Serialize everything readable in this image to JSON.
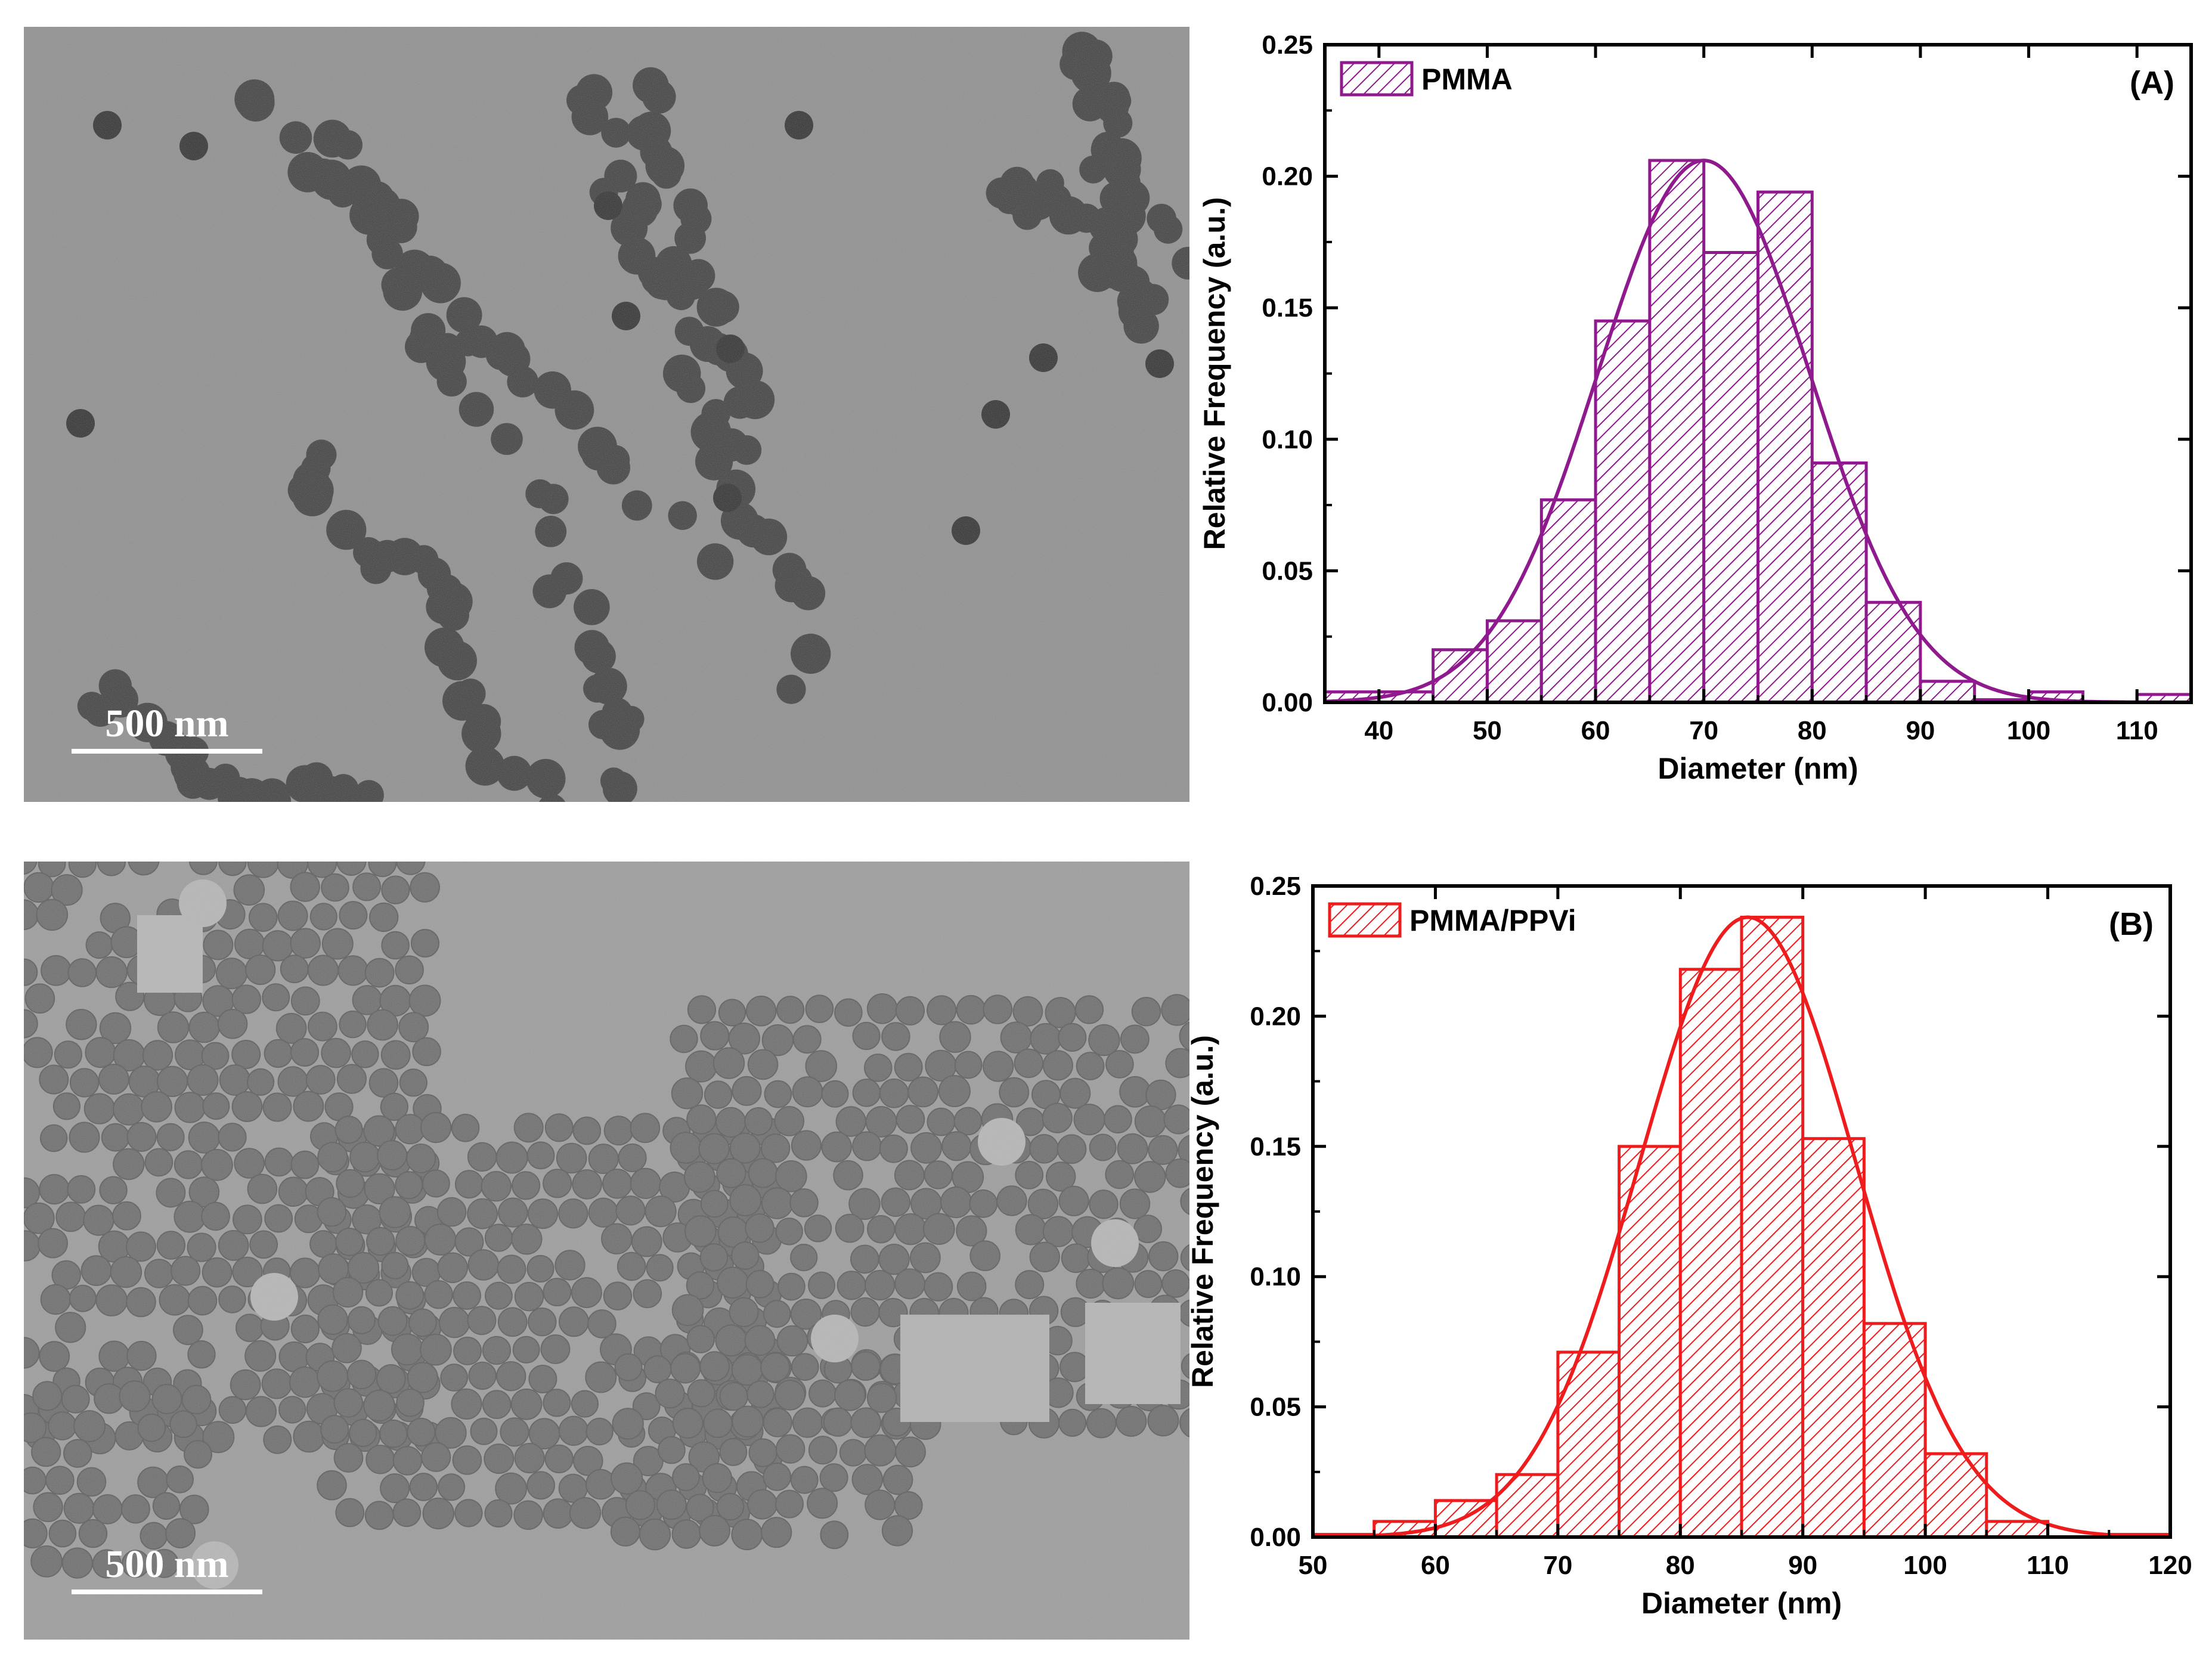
{
  "tem_images": [
    {
      "scale_label": "500 nm",
      "accent": "#3d3d3d"
    },
    {
      "scale_label": "500 nm",
      "accent": "#6b6b6b"
    }
  ],
  "chart_data": [
    {
      "type": "bar",
      "panel_label": "(A)",
      "legend": "PMMA",
      "color": "#8e1a8e",
      "xlabel": "Diameter (nm)",
      "ylabel": "Relative Frequency (a.u.)",
      "xlim": [
        35,
        115
      ],
      "ylim": [
        0,
        0.25
      ],
      "xticks": [
        40,
        50,
        60,
        70,
        80,
        90,
        100,
        110
      ],
      "yticks": [
        0.0,
        0.05,
        0.1,
        0.15,
        0.2,
        0.25
      ],
      "bin_width": 5,
      "bins": [
        {
          "x": 35,
          "value": 0.004
        },
        {
          "x": 40,
          "value": 0.004
        },
        {
          "x": 45,
          "value": 0.02
        },
        {
          "x": 50,
          "value": 0.031
        },
        {
          "x": 55,
          "value": 0.077
        },
        {
          "x": 60,
          "value": 0.145
        },
        {
          "x": 65,
          "value": 0.206
        },
        {
          "x": 70,
          "value": 0.171
        },
        {
          "x": 75,
          "value": 0.194
        },
        {
          "x": 80,
          "value": 0.091
        },
        {
          "x": 85,
          "value": 0.038
        },
        {
          "x": 90,
          "value": 0.008
        },
        {
          "x": 95,
          "value": 0.001
        },
        {
          "x": 100,
          "value": 0.004
        },
        {
          "x": 105,
          "value": 0.0
        },
        {
          "x": 110,
          "value": 0.003
        }
      ],
      "fit": {
        "type": "gaussian",
        "peak": 0.206,
        "center": 70,
        "sigma": 9.8
      }
    },
    {
      "type": "bar",
      "panel_label": "(B)",
      "legend": "PMMA/PPVi",
      "color": "#ee1c1c",
      "xlabel": "Diameter (nm)",
      "ylabel": "Relative Frequency (a.u.)",
      "xlim": [
        50,
        120
      ],
      "ylim": [
        0,
        0.25
      ],
      "xticks": [
        50,
        60,
        70,
        80,
        90,
        100,
        110,
        120
      ],
      "yticks": [
        0.0,
        0.05,
        0.1,
        0.15,
        0.2,
        0.25
      ],
      "bin_width": 5,
      "bins": [
        {
          "x": 50,
          "value": 0.001
        },
        {
          "x": 55,
          "value": 0.006
        },
        {
          "x": 60,
          "value": 0.014
        },
        {
          "x": 65,
          "value": 0.024
        },
        {
          "x": 70,
          "value": 0.071
        },
        {
          "x": 75,
          "value": 0.15
        },
        {
          "x": 80,
          "value": 0.218
        },
        {
          "x": 85,
          "value": 0.238
        },
        {
          "x": 90,
          "value": 0.153
        },
        {
          "x": 95,
          "value": 0.082
        },
        {
          "x": 100,
          "value": 0.032
        },
        {
          "x": 105,
          "value": 0.006
        },
        {
          "x": 110,
          "value": 0.0
        },
        {
          "x": 115,
          "value": 0.001
        }
      ],
      "fit": {
        "type": "gaussian",
        "peak": 0.238,
        "center": 85.5,
        "sigma": 8.8
      }
    }
  ]
}
